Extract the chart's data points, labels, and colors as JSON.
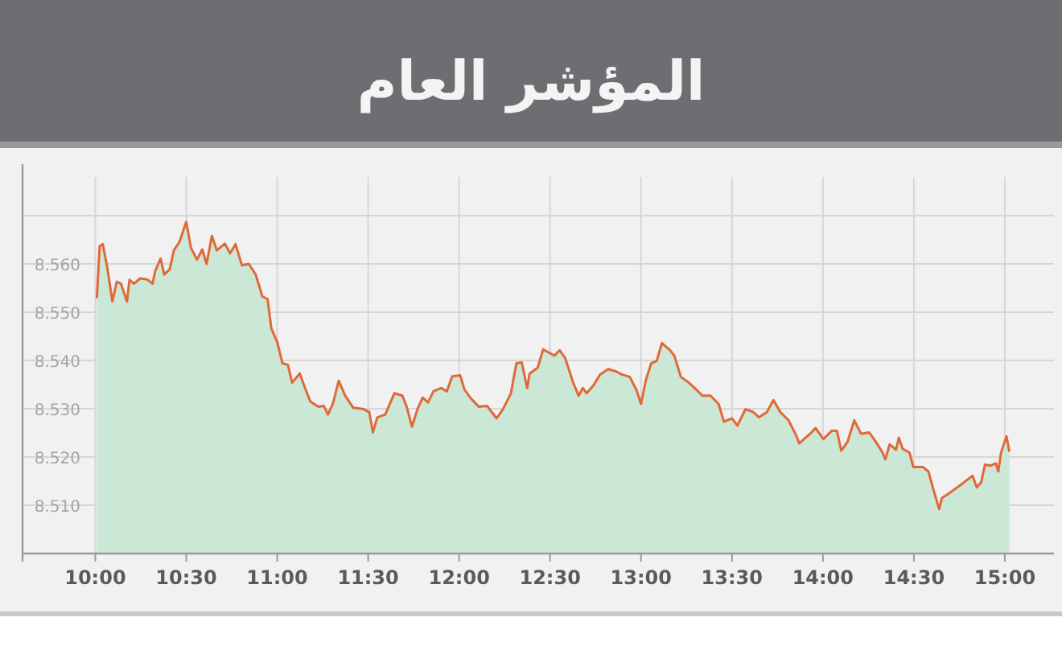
{
  "chart_data": {
    "type": "area",
    "title": "المؤشر العام",
    "x": [
      10.009,
      10.024,
      10.041,
      10.065,
      10.094,
      10.118,
      10.141,
      10.174,
      10.188,
      10.212,
      10.247,
      10.285,
      10.315,
      10.329,
      10.359,
      10.379,
      10.409,
      10.432,
      10.462,
      10.5,
      10.526,
      10.559,
      10.588,
      10.612,
      10.641,
      10.668,
      10.712,
      10.741,
      10.771,
      10.806,
      10.844,
      10.882,
      10.918,
      10.947,
      10.968,
      11.0,
      11.029,
      11.059,
      11.082,
      11.124,
      11.153,
      11.182,
      11.226,
      11.256,
      11.279,
      11.306,
      11.338,
      11.374,
      11.418,
      11.476,
      11.506,
      11.526,
      11.55,
      11.594,
      11.644,
      11.688,
      11.712,
      11.741,
      11.771,
      11.8,
      11.829,
      11.859,
      11.903,
      11.932,
      11.962,
      12.006,
      12.029,
      12.065,
      12.109,
      12.153,
      12.206,
      12.241,
      12.285,
      12.315,
      12.344,
      12.374,
      12.388,
      12.432,
      12.462,
      12.524,
      12.553,
      12.583,
      12.627,
      12.657,
      12.68,
      12.701,
      12.74,
      12.775,
      12.82,
      12.864,
      12.893,
      12.938,
      12.976,
      13.0,
      13.027,
      13.056,
      13.086,
      13.115,
      13.16,
      13.183,
      13.219,
      13.263,
      13.308,
      13.337,
      13.382,
      13.426,
      13.456,
      13.5,
      13.53,
      13.574,
      13.618,
      13.648,
      13.692,
      13.728,
      13.766,
      13.811,
      13.855,
      13.87,
      13.929,
      13.959,
      14.003,
      14.047,
      14.077,
      14.101,
      14.136,
      14.172,
      14.21,
      14.254,
      14.29,
      14.328,
      14.343,
      14.367,
      14.402,
      14.417,
      14.438,
      14.476,
      14.497,
      14.55,
      14.58,
      14.604,
      14.639,
      14.654,
      14.698,
      14.757,
      14.822,
      14.846,
      14.87,
      14.891,
      14.92,
      14.95,
      14.964,
      14.979,
      15.009,
      15.024
    ],
    "series": [
      {
        "color": "#e0693a",
        "values": [
          8.5531,
          8.5637,
          8.5641,
          8.5594,
          8.5522,
          8.5563,
          8.5559,
          8.5522,
          8.5567,
          8.5559,
          8.557,
          8.5568,
          8.5559,
          8.5585,
          8.5611,
          8.5578,
          8.5589,
          8.5628,
          8.5645,
          8.5687,
          8.5633,
          8.5609,
          8.563,
          8.56,
          8.5658,
          8.5628,
          8.5642,
          8.5622,
          8.5641,
          8.5597,
          8.56,
          8.5578,
          8.5533,
          8.5527,
          8.5466,
          8.5438,
          8.5394,
          8.5391,
          8.5354,
          8.5373,
          8.5343,
          8.5315,
          8.5304,
          8.5306,
          8.5288,
          8.531,
          8.5358,
          8.5327,
          8.5302,
          8.5299,
          8.5293,
          8.5251,
          8.5282,
          8.5288,
          8.5332,
          8.5327,
          8.5304,
          8.5263,
          8.5299,
          8.5323,
          8.5313,
          8.5336,
          8.5343,
          8.5336,
          8.5367,
          8.5369,
          8.534,
          8.5321,
          8.5304,
          8.5306,
          8.528,
          8.5299,
          8.5332,
          8.5394,
          8.5396,
          8.5343,
          8.5373,
          8.5385,
          8.5423,
          8.541,
          8.5421,
          8.5405,
          8.5354,
          8.5327,
          8.5343,
          8.5332,
          8.5349,
          8.5371,
          8.5382,
          8.5377,
          8.5371,
          8.5366,
          8.5338,
          8.531,
          8.536,
          8.5394,
          8.5399,
          8.5436,
          8.5421,
          8.541,
          8.5366,
          8.5354,
          8.5338,
          8.5327,
          8.5327,
          8.531,
          8.5273,
          8.528,
          8.5265,
          8.5299,
          8.5293,
          8.5282,
          8.5293,
          8.5318,
          8.5293,
          8.5276,
          8.5243,
          8.5228,
          8.5248,
          8.526,
          8.5237,
          8.5254,
          8.5254,
          8.5213,
          8.5232,
          8.5276,
          8.5248,
          8.5251,
          8.5232,
          8.5209,
          8.5195,
          8.5226,
          8.5215,
          8.524,
          8.5217,
          8.5209,
          8.5179,
          8.5179,
          8.517,
          8.5137,
          8.5092,
          8.5115,
          8.5126,
          8.5142,
          8.5161,
          8.5137,
          8.5148,
          8.5184,
          8.5182,
          8.5187,
          8.517,
          8.5209,
          8.5243,
          8.5213
        ]
      }
    ],
    "xlim": [
      9.6,
      15.27
    ],
    "ylim": [
      8.5,
      8.578
    ],
    "xticks": [
      {
        "value": 10,
        "label": "10:00"
      },
      {
        "value": 10.5,
        "label": "10:30"
      },
      {
        "value": 11,
        "label": "11:00"
      },
      {
        "value": 11.5,
        "label": "11:30"
      },
      {
        "value": 12,
        "label": "12:00"
      },
      {
        "value": 12.5,
        "label": "12:30"
      },
      {
        "value": 13,
        "label": "13:00"
      },
      {
        "value": 13.5,
        "label": "13:30"
      },
      {
        "value": 14,
        "label": "14:00"
      },
      {
        "value": 14.5,
        "label": "14:30"
      },
      {
        "value": 15,
        "label": "15:00"
      }
    ],
    "yticks": [
      {
        "value": 8.51,
        "label": "8.510"
      },
      {
        "value": 8.52,
        "label": "8.520"
      },
      {
        "value": 8.53,
        "label": "8.530"
      },
      {
        "value": 8.54,
        "label": "8.540"
      },
      {
        "value": 8.55,
        "label": "8.550"
      },
      {
        "value": 8.56,
        "label": "8.560"
      },
      {
        "value": 8.57,
        "label": null
      }
    ],
    "grid": true,
    "marker": "none",
    "line_style": "solid"
  }
}
